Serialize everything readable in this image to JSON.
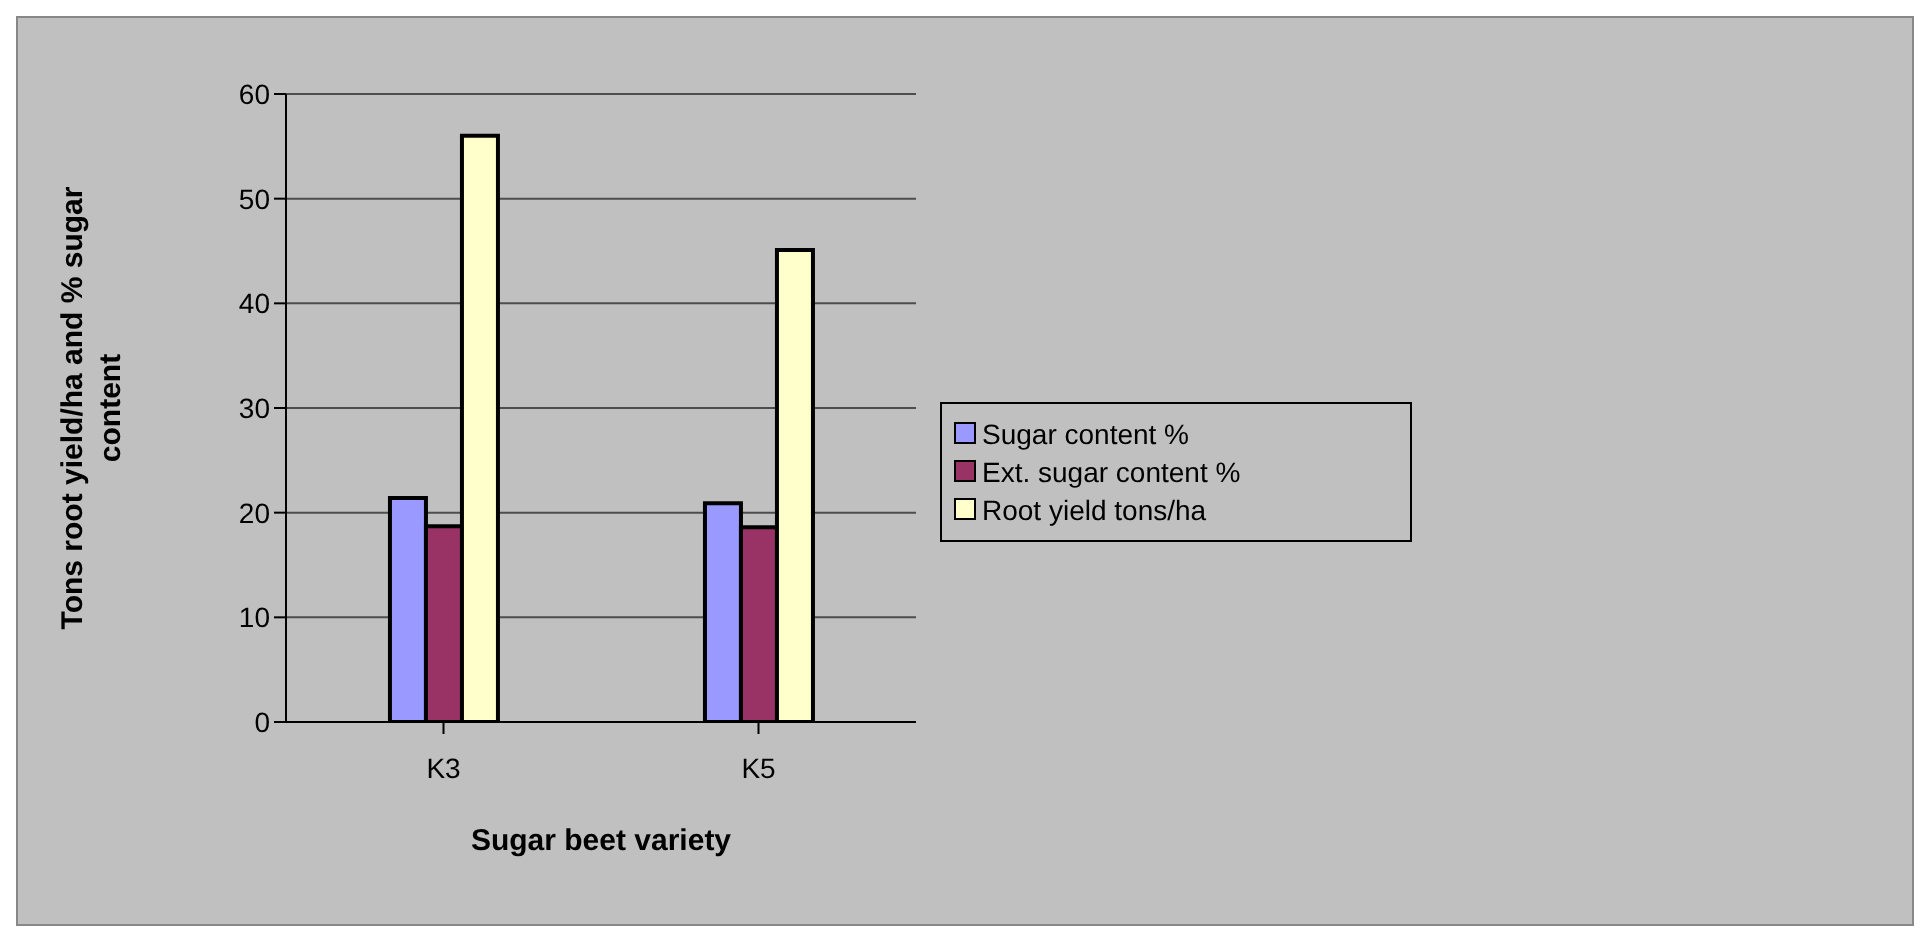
{
  "chart_data": {
    "type": "bar",
    "xlabel": "Sugar beet variety",
    "ylabel": "Tons root yield/ha and % sugar content",
    "categories": [
      "K3",
      "K5"
    ],
    "series": [
      {
        "name": "Sugar content %",
        "color": "#9999ff",
        "values": [
          21.4,
          20.9
        ]
      },
      {
        "name": "Ext. sugar content %",
        "color": "#993366",
        "values": [
          18.7,
          18.6
        ]
      },
      {
        "name": "Root yield tons/ha",
        "color": "#ffffcc",
        "values": [
          56.0,
          45.1
        ]
      }
    ],
    "ylim": [
      0,
      60
    ],
    "yticks": [
      0,
      10,
      20,
      30,
      40,
      50,
      60
    ],
    "grid": "y",
    "legend": "right"
  }
}
